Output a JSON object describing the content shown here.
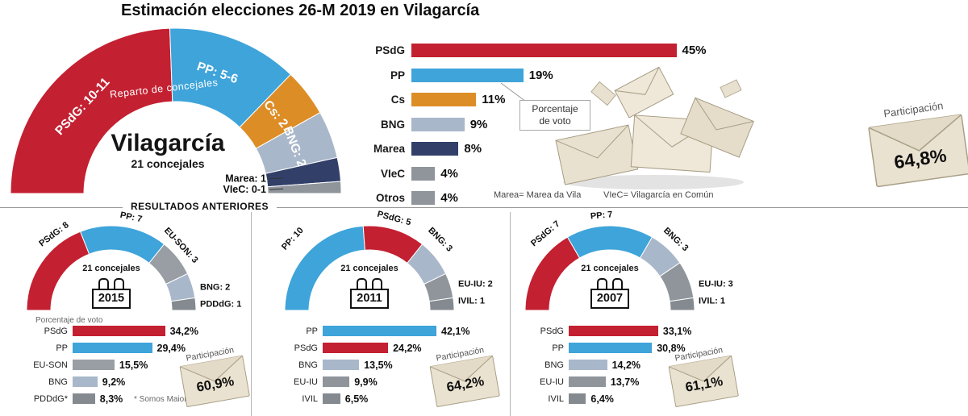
{
  "title": "Estimación elecciones 26-M 2019 en Vilagarcía",
  "section_title": "RESULTADOS ANTERIORES",
  "vote_box": {
    "line1": "Porcentaje",
    "line2": "de voto"
  },
  "footnotes": {
    "marea": "Marea= Marea da Vila",
    "viec": "VIeC= Vilagarcía en Común"
  },
  "participation": {
    "label": "Participación",
    "main": "64,8%",
    "y2015": "60,9%",
    "y2011": "64,2%",
    "y2007": "61,1%"
  },
  "panels": {
    "p2015": {
      "year": "2015",
      "vote_label": "Porcentaje de voto",
      "note": "* Somos Maioría"
    },
    "p2011": {
      "year": "2011"
    },
    "p2007": {
      "year": "2007"
    }
  },
  "icons": {
    "participation": "envelope-icon",
    "year": "calendar-icon",
    "illustration": "envelopes-illustration"
  },
  "colors": {
    "PSdG": "#c32031",
    "PP": "#3ea4da",
    "Cs": "#dd8d26",
    "BNG": "#a9b7ca",
    "Marea": "#324069",
    "gray": "#8f959b"
  },
  "chart_data": [
    {
      "id": "donut-2019",
      "type": "half-donut",
      "caption": "Reparto de concejales",
      "center_title": "Vilagarcía",
      "center_subtitle": "21 concejales",
      "segments": [
        {
          "party": "PSdG",
          "label": "PSdG: 10-11",
          "seats": 10.5,
          "seats_text": "10-11",
          "color": "#c32031",
          "placement": "inside",
          "label_angle": 137
        },
        {
          "party": "PP",
          "label": "PP: 5-6",
          "seats": 5.5,
          "seats_text": "5-6",
          "color": "#3ea4da",
          "placement": "inside",
          "label_angle": 71
        },
        {
          "party": "Cs",
          "label": "Cs: 2",
          "seats": 2,
          "seats_text": "2",
          "color": "#dd8d26",
          "placement": "inside",
          "label_angle": 38.5
        },
        {
          "party": "BNG",
          "label": "BNG: 2",
          "seats": 2,
          "seats_text": "2",
          "color": "#a9b7ca",
          "placement": "inside",
          "label_angle": 21.5
        },
        {
          "party": "Marea",
          "label": "Marea: 1",
          "seats": 1,
          "seats_text": "1",
          "color": "#324069",
          "placement": "inside-left",
          "label_angle": 8.5
        },
        {
          "party": "VIeC",
          "label": "VIeC: 0-1",
          "seats": 0.5,
          "seats_text": "0-1",
          "color": "#8f959b",
          "placement": "inside-left",
          "label_angle": 2.2
        }
      ]
    },
    {
      "id": "bars-2019",
      "type": "bar",
      "title": "Porcentaje de voto",
      "unit": "%",
      "rows": [
        {
          "label": "PSdG",
          "value": 45,
          "value_label": "45%",
          "color": "#c32031"
        },
        {
          "label": "PP",
          "value": 19,
          "value_label": "19%",
          "color": "#3ea4da"
        },
        {
          "label": "Cs",
          "value": 11,
          "value_label": "11%",
          "color": "#dd8d26"
        },
        {
          "label": "BNG",
          "value": 9,
          "value_label": "9%",
          "color": "#a9b7ca"
        },
        {
          "label": "Marea",
          "value": 8,
          "value_label": "8%",
          "color": "#324069"
        },
        {
          "label": "VIeC",
          "value": 4,
          "value_label": "4%",
          "color": "#8f959b"
        },
        {
          "label": "Otros",
          "value": 4,
          "value_label": "4%",
          "color": "#8f959b"
        }
      ]
    },
    {
      "id": "donut-2015",
      "type": "half-donut",
      "center_subtitle": "21 concejales",
      "segments": [
        {
          "party": "PSdG",
          "label": "PSdG: 8",
          "seats": 8,
          "color": "#c32031",
          "placement": "arc-out",
          "label_angle": 127
        },
        {
          "party": "PP",
          "label": "PP: 7",
          "seats": 7,
          "color": "#3ea4da",
          "placement": "arc-out",
          "label_angle": 78
        },
        {
          "party": "EU-SON",
          "label": "EU-SON: 3",
          "seats": 3,
          "color": "#989ea4",
          "placement": "arc-out",
          "label_angle": 43
        },
        {
          "party": "BNG",
          "label": "BNG: 2",
          "seats": 2,
          "color": "#a9b7ca",
          "placement": "side",
          "label_angle": 15
        },
        {
          "party": "PDDdG",
          "label": "PDDdG: 1",
          "seats": 1,
          "color": "#848a90",
          "placement": "side",
          "label_angle": 4
        }
      ]
    },
    {
      "id": "bars-2015",
      "type": "bar",
      "title": "Porcentaje de voto",
      "rows": [
        {
          "label": "PSdG",
          "value": 34.2,
          "value_label": "34,2%",
          "color": "#c32031"
        },
        {
          "label": "PP",
          "value": 29.4,
          "value_label": "29,4%",
          "color": "#3ea4da"
        },
        {
          "label": "EU-SON",
          "value": 15.5,
          "value_label": "15,5%",
          "color": "#989ea4"
        },
        {
          "label": "BNG",
          "value": 9.2,
          "value_label": "9,2%",
          "color": "#a9b7ca"
        },
        {
          "label": "PDDdG*",
          "value": 8.3,
          "value_label": "8,3%",
          "color": "#848a90"
        }
      ]
    },
    {
      "id": "donut-2011",
      "type": "half-donut",
      "center_subtitle": "21 concejales",
      "segments": [
        {
          "party": "PP",
          "label": "PP: 10",
          "seats": 10,
          "color": "#3ea4da",
          "placement": "arc-out",
          "label_angle": 137,
          "label_r": 130
        },
        {
          "party": "PSdG",
          "label": "PSdG: 5",
          "seats": 5,
          "color": "#c32031",
          "placement": "arc-out",
          "label_angle": 75
        },
        {
          "party": "BNG",
          "label": "BNG: 3",
          "seats": 3,
          "color": "#a9b7ca",
          "placement": "arc-out",
          "label_angle": 45,
          "label_r": 124
        },
        {
          "party": "EU-IU",
          "label": "EU-IU: 2",
          "seats": 2,
          "color": "#8f959b",
          "placement": "side",
          "label_angle": 17
        },
        {
          "party": "IVIL",
          "label": "IVIL: 1",
          "seats": 1,
          "color": "#848a90",
          "placement": "side",
          "label_angle": 6
        }
      ]
    },
    {
      "id": "bars-2011",
      "type": "bar",
      "rows": [
        {
          "label": "PP",
          "value": 42.1,
          "value_label": "42,1%",
          "color": "#3ea4da"
        },
        {
          "label": "PSdG",
          "value": 24.2,
          "value_label": "24,2%",
          "color": "#c32031"
        },
        {
          "label": "BNG",
          "value": 13.5,
          "value_label": "13,5%",
          "color": "#a9b7ca"
        },
        {
          "label": "EU-IU",
          "value": 9.9,
          "value_label": "9,9%",
          "color": "#8f959b"
        },
        {
          "label": "IVIL",
          "value": 6.5,
          "value_label": "6,5%",
          "color": "#848a90"
        }
      ]
    },
    {
      "id": "donut-2007",
      "type": "half-donut",
      "center_subtitle": "21 concejales",
      "segments": [
        {
          "party": "PSdG",
          "label": "PSdG: 7",
          "seats": 7,
          "color": "#c32031",
          "placement": "arc-out",
          "label_angle": 130,
          "label_r": 124
        },
        {
          "party": "PP",
          "label": "PP: 7",
          "seats": 7,
          "color": "#3ea4da",
          "placement": "arc-out",
          "label_angle": 95
        },
        {
          "party": "BNG",
          "label": "BNG: 3",
          "seats": 3,
          "color": "#a9b7ca",
          "placement": "arc-out",
          "label_angle": 47,
          "label_r": 120
        },
        {
          "party": "EU-IU",
          "label": "EU-IU: 3",
          "seats": 3,
          "color": "#8f959b",
          "placement": "side",
          "label_angle": 17
        },
        {
          "party": "IVIL",
          "label": "IVIL: 1",
          "seats": 1,
          "color": "#848a90",
          "placement": "side",
          "label_angle": 6
        }
      ]
    },
    {
      "id": "bars-2007",
      "type": "bar",
      "rows": [
        {
          "label": "PSdG",
          "value": 33.1,
          "value_label": "33,1%",
          "color": "#c32031"
        },
        {
          "label": "PP",
          "value": 30.8,
          "value_label": "30,8%",
          "color": "#3ea4da"
        },
        {
          "label": "BNG",
          "value": 14.2,
          "value_label": "14,2%",
          "color": "#a9b7ca"
        },
        {
          "label": "EU-IU",
          "value": 13.7,
          "value_label": "13,7%",
          "color": "#8f959b"
        },
        {
          "label": "IVIL",
          "value": 6.4,
          "value_label": "6,4%",
          "color": "#848a90"
        }
      ]
    }
  ]
}
